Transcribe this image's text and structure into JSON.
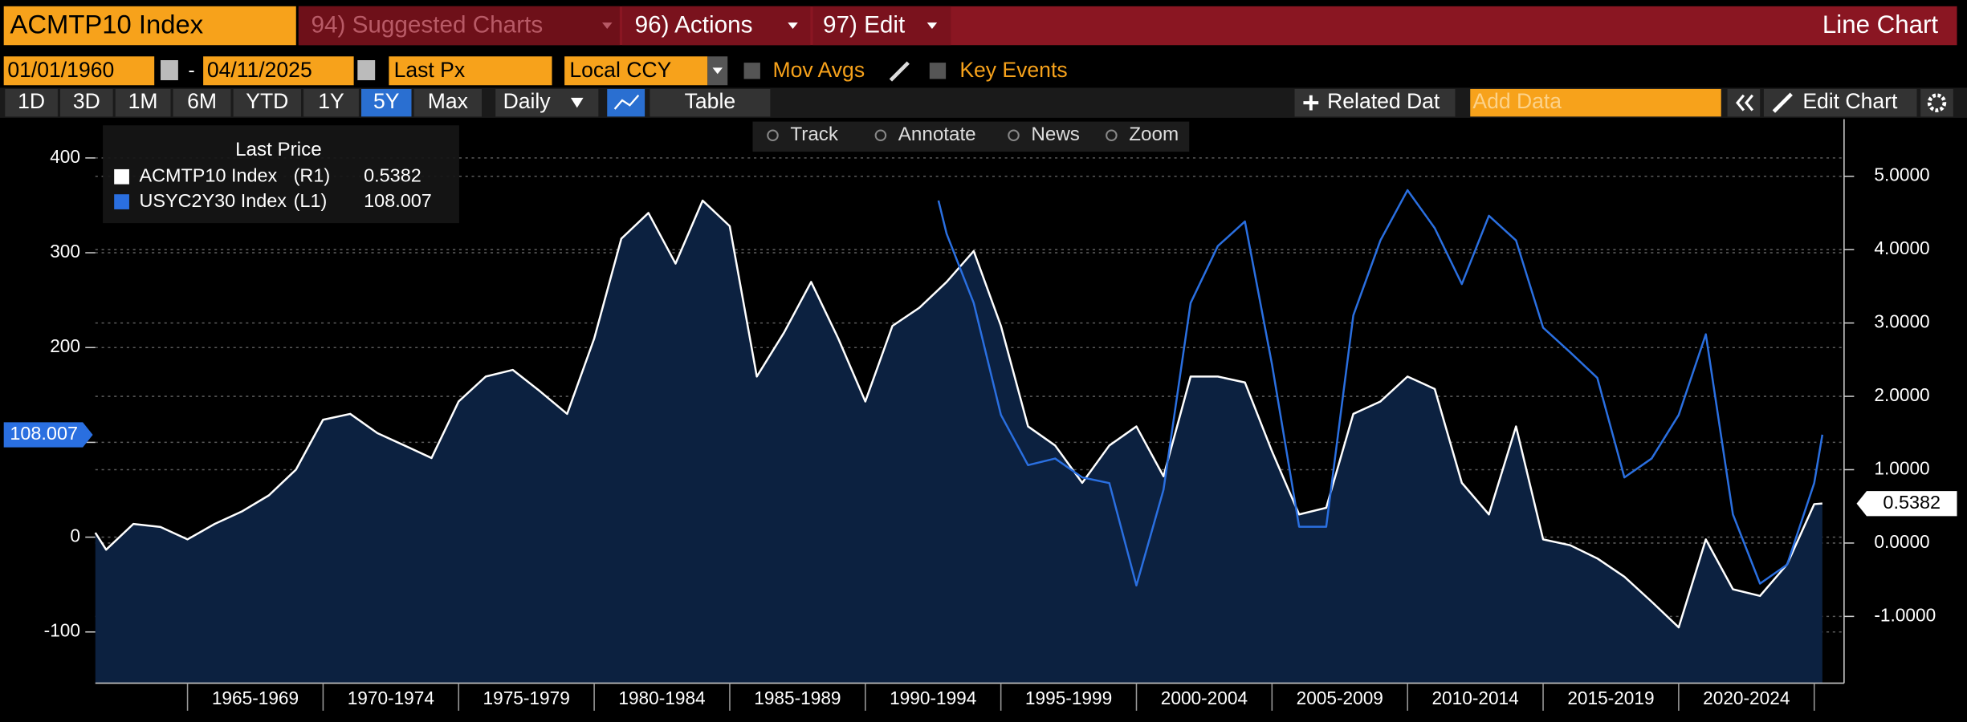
{
  "toolbar": {
    "security": "ACMTP10 Index",
    "menus": [
      "94) Suggested Charts",
      "96) Actions",
      "97) Edit"
    ],
    "chart_type": "Line Chart"
  },
  "controls": {
    "start_date": "01/01/1960",
    "date_separator": "-",
    "end_date": "04/11/2025",
    "field": "Last Px",
    "currency": "Local CCY",
    "options": [
      "Mov Avgs",
      "Key Events"
    ]
  },
  "periods": [
    "1D",
    "3D",
    "1M",
    "6M",
    "YTD",
    "1Y",
    "5Y",
    "Max"
  ],
  "buttons": {
    "frequency": "Daily",
    "table": "Table",
    "related": "Related Dat",
    "add_data": "Add Data",
    "edit_chart": "Edit Chart"
  },
  "chart_tools": [
    "Track",
    "Annotate",
    "News",
    "Zoom"
  ],
  "chart_data": {
    "type": "line",
    "legend_title": "Last Price",
    "xlim": [
      1961.6,
      2026.1
    ],
    "xticks": [
      1965,
      1970,
      1975,
      1980,
      1985,
      1990,
      1995,
      2000,
      2005,
      2010,
      2015,
      2020,
      2025
    ],
    "period_labels": [
      "1965-1969",
      "1970-1974",
      "1975-1979",
      "1980-1984",
      "1985-1989",
      "1990-1994",
      "1995-1999",
      "2000-2004",
      "2005-2009",
      "2010-2014",
      "2015-2019",
      "2020-2024"
    ],
    "ylim": [
      -154,
      441
    ],
    "yticks": [
      -100,
      0,
      100,
      200,
      300,
      400
    ],
    "y2lim": [
      -1.91,
      5.78
    ],
    "y2ticks": [
      {
        "value": -1,
        "label": "-1.0000"
      },
      {
        "value": 0,
        "label": "0.0000"
      },
      {
        "value": 1,
        "label": "1.0000"
      },
      {
        "value": 2,
        "label": "2.0000"
      },
      {
        "value": 3,
        "label": "3.0000"
      },
      {
        "value": 4,
        "label": "4.0000"
      },
      {
        "value": 5,
        "label": "5.0000"
      }
    ],
    "grid": true,
    "series": [
      {
        "name": "ACMTP10 Index",
        "axis_label": "(R1)",
        "axis": "y2",
        "color": "#ffffff",
        "fill": "#0c2140",
        "x": [
          1961.6,
          1962,
          1963,
          1964,
          1965,
          1966,
          1967,
          1968,
          1969,
          1970,
          1971,
          1972,
          1973,
          1974,
          1975,
          1976,
          1977,
          1978,
          1979,
          1980,
          1981,
          1982,
          1983,
          1984,
          1985,
          1986,
          1987,
          1988,
          1989,
          1990,
          1991,
          1992,
          1993,
          1994,
          1995,
          1996,
          1997,
          1998,
          1999,
          2000,
          2001,
          2002,
          2003,
          2004,
          2005,
          2006,
          2007,
          2008,
          2009,
          2010,
          2011,
          2012,
          2013,
          2014,
          2015,
          2016,
          2017,
          2018,
          2019,
          2020,
          2021,
          2022,
          2023,
          2024,
          2025,
          2025.3
        ],
        "values": [
          0.14,
          -0.09,
          0.26,
          0.22,
          0.05,
          0.26,
          0.43,
          0.65,
          1.0,
          1.68,
          1.76,
          1.5,
          1.33,
          1.16,
          1.93,
          2.27,
          2.36,
          2.07,
          1.76,
          2.79,
          4.15,
          4.5,
          3.81,
          4.67,
          4.32,
          2.27,
          2.87,
          3.56,
          2.79,
          1.93,
          2.96,
          3.21,
          3.56,
          3.98,
          2.96,
          1.59,
          1.33,
          0.82,
          1.33,
          1.59,
          0.91,
          2.27,
          2.27,
          2.19,
          1.25,
          0.39,
          0.48,
          1.76,
          1.93,
          2.27,
          2.1,
          0.82,
          0.39,
          1.59,
          0.05,
          -0.03,
          -0.21,
          -0.46,
          -0.8,
          -1.15,
          0.05,
          -0.63,
          -0.72,
          -0.29,
          0.53,
          0.5382
        ]
      },
      {
        "name": "USYC2Y30 Index",
        "axis_label": "(L1)",
        "axis": "y",
        "color": "#2a6fe0",
        "x": [
          1992.7,
          1993,
          1994,
          1995,
          1996,
          1997,
          1998,
          1999,
          2000,
          2001,
          2002,
          2003,
          2004,
          2005,
          2006,
          2007,
          2008,
          2009,
          2010,
          2011,
          2012,
          2013,
          2014,
          2015,
          2016,
          2017,
          2018,
          2019,
          2020,
          2021,
          2022,
          2023,
          2024,
          2025,
          2025.3
        ],
        "values": [
          355,
          320,
          247,
          129,
          76,
          83,
          63,
          57,
          -51,
          50,
          247,
          307,
          333,
          182,
          11,
          11,
          234,
          313,
          366,
          326,
          267,
          339,
          313,
          221,
          195,
          168,
          63,
          83,
          129,
          214,
          24,
          -49,
          -29,
          57,
          108.007
        ]
      }
    ]
  }
}
